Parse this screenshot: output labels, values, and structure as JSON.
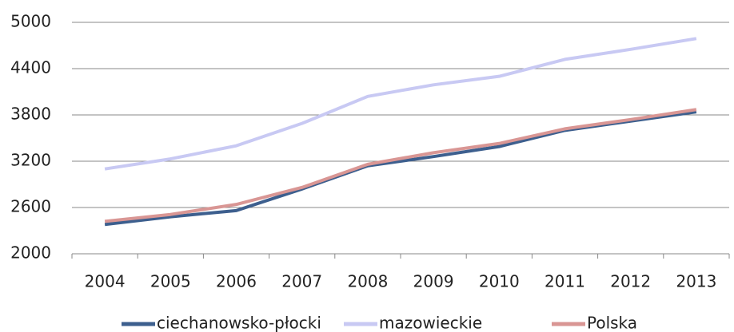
{
  "chart_data": {
    "type": "line",
    "categories": [
      "2004",
      "2005",
      "2006",
      "2007",
      "2008",
      "2009",
      "2010",
      "2011",
      "2012",
      "2013"
    ],
    "series": [
      {
        "name": "ciechanowsko-płocki",
        "color": "#3d5f8e",
        "values": [
          2380,
          2480,
          2560,
          2840,
          3140,
          3260,
          3390,
          3600,
          3720,
          3840
        ]
      },
      {
        "name": "mazowieckie",
        "color": "#c8c9f3",
        "values": [
          3100,
          3230,
          3400,
          3690,
          4040,
          4190,
          4300,
          4520,
          4650,
          4790
        ]
      },
      {
        "name": "Polska",
        "color": "#d99694",
        "values": [
          2420,
          2510,
          2640,
          2860,
          3160,
          3310,
          3430,
          3620,
          3740,
          3870
        ]
      }
    ],
    "ylim": [
      2000,
      5000
    ],
    "yticks": [
      2000,
      2600,
      3200,
      3800,
      4400,
      5000
    ],
    "grid": true,
    "legend": "bottom"
  }
}
